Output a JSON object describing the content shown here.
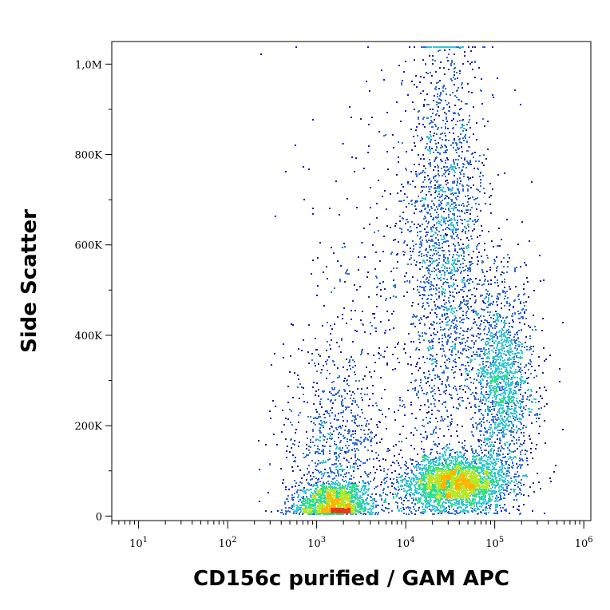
{
  "chart_data": {
    "type": "scatter",
    "subtype": "flow-cytometry density plot",
    "title": "",
    "xlabel": "CD156c purified / GAM APC",
    "ylabel": "Side Scatter",
    "x_scale": "log",
    "xlim": [
      5,
      1200000
    ],
    "ylim": [
      -10000,
      1050000
    ],
    "x_ticks": [
      {
        "value": 10,
        "base": "10",
        "exp": "1"
      },
      {
        "value": 100,
        "base": "10",
        "exp": "2"
      },
      {
        "value": 1000,
        "base": "10",
        "exp": "3"
      },
      {
        "value": 10000,
        "base": "10",
        "exp": "4"
      },
      {
        "value": 100000,
        "base": "10",
        "exp": "5"
      },
      {
        "value": 1000000,
        "base": "10",
        "exp": "6"
      }
    ],
    "y_ticks": [
      {
        "value": 0,
        "label": "0"
      },
      {
        "value": 200000,
        "label": "200K"
      },
      {
        "value": 400000,
        "label": "400K"
      },
      {
        "value": 600000,
        "label": "600K"
      },
      {
        "value": 800000,
        "label": "800K"
      },
      {
        "value": 1000000,
        "label": "1,0M"
      }
    ],
    "colormap": [
      "#1a1aa8",
      "#2f6bd8",
      "#33c6d4",
      "#2ee08a",
      "#b8e62a",
      "#ffb400",
      "#e83a1a"
    ],
    "grid": false,
    "populations": [
      {
        "name_hint": "negative",
        "x_center": 1500,
        "y_center": 30000,
        "x_spread_log": 0.22,
        "y_spread": 25000,
        "weight": 0.16
      },
      {
        "name_hint": "negative-tail",
        "x_center": 1600,
        "y_center": 160000,
        "x_spread_log": 0.28,
        "y_spread": 110000,
        "weight": 0.08
      },
      {
        "name_hint": "positive-dense",
        "x_center": 35000,
        "y_center": 75000,
        "x_spread_log": 0.3,
        "y_spread": 30000,
        "weight": 0.3
      },
      {
        "name_hint": "high-ssc",
        "x_center": 28000,
        "y_center": 620000,
        "x_spread_log": 0.22,
        "y_spread": 230000,
        "weight": 0.2
      },
      {
        "name_hint": "bright",
        "x_center": 120000,
        "y_center": 290000,
        "x_spread_log": 0.18,
        "y_spread": 110000,
        "weight": 0.18
      },
      {
        "name_hint": "sparse",
        "x_center": 10000,
        "y_center": 400000,
        "x_spread_log": 0.6,
        "y_spread": 250000,
        "weight": 0.08
      }
    ]
  }
}
